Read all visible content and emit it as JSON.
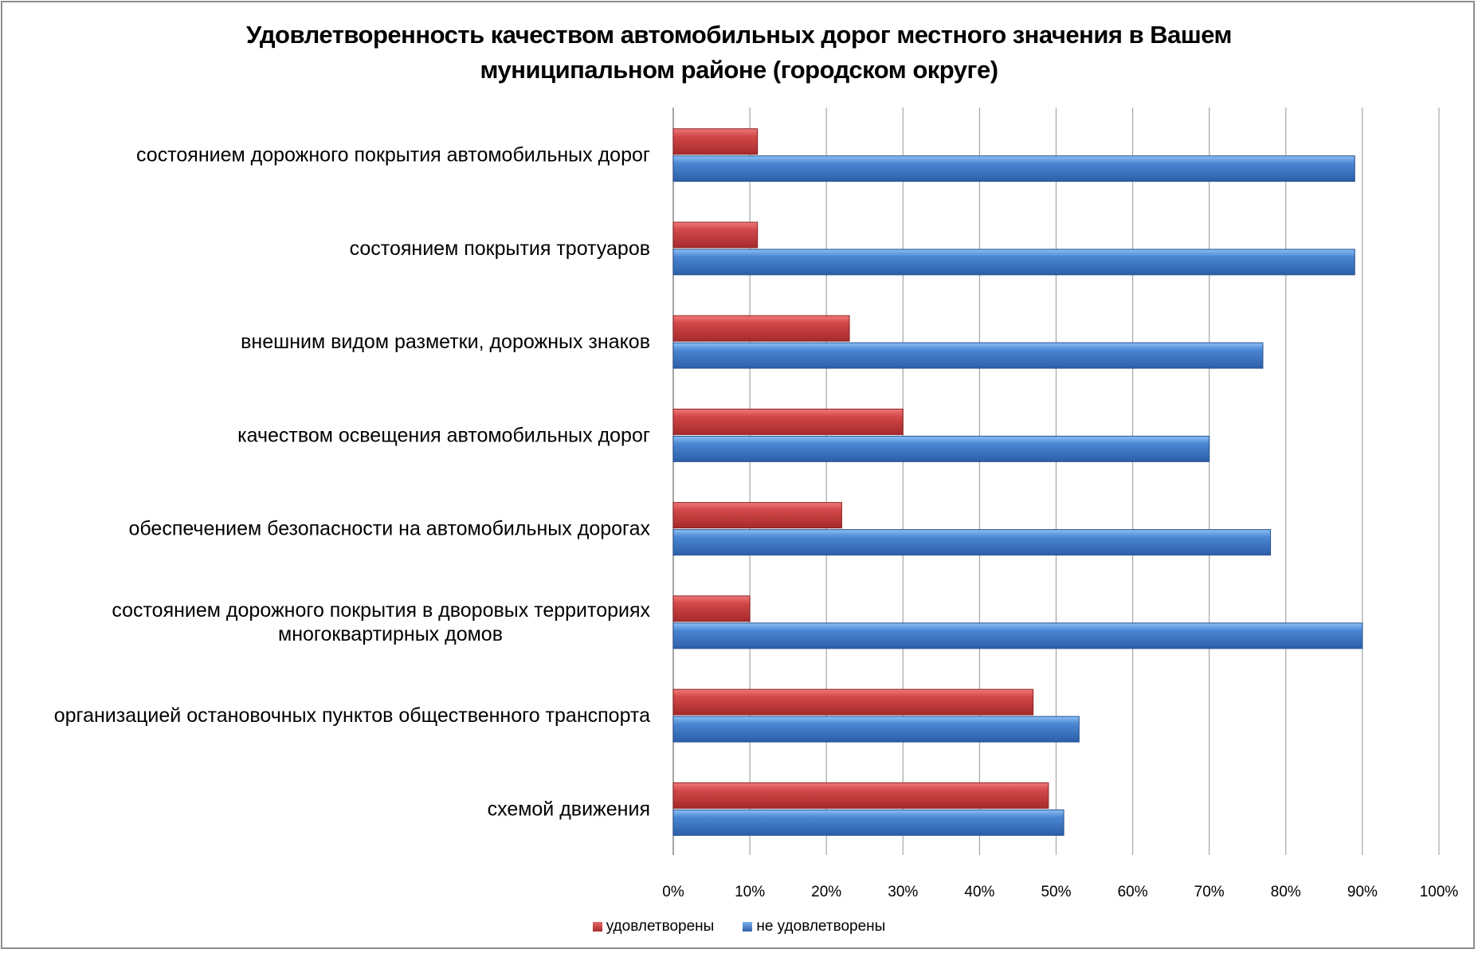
{
  "chart_data": {
    "type": "bar",
    "orientation": "horizontal",
    "title": "Удовлетворенность качеством автомобильных дорог местного значения в Вашем муниципальном районе (городском округе)",
    "title_lines": [
      "Удовлетворенность качеством автомобильных дорог местного значения в Вашем",
      "муниципальном районе (городском округе)"
    ],
    "categories": [
      [
        "состоянием дорожного покрытия автомобильных дорог"
      ],
      [
        "состоянием покрытия тротуаров"
      ],
      [
        "внешним видом разметки, дорожных знаков"
      ],
      [
        "качеством освещения автомобильных дорог"
      ],
      [
        "обеспечением безопасности на автомобильных дорогах"
      ],
      [
        "состоянием дорожного покрытия в дворовых территориях",
        "многоквартирных домов"
      ],
      [
        "организацией остановочных пунктов общественного транспорта"
      ],
      [
        "схемой движения"
      ]
    ],
    "series": [
      {
        "name": "удовлетворены",
        "color": "#c0393b",
        "values": [
          11,
          11,
          23,
          30,
          22,
          10,
          47,
          49
        ]
      },
      {
        "name": "не удовлетворены",
        "color": "#3a72c0",
        "values": [
          89,
          89,
          77,
          70,
          78,
          90,
          53,
          51
        ]
      }
    ],
    "xlim": [
      0,
      100
    ],
    "xticks": [
      "0%",
      "10%",
      "20%",
      "30%",
      "40%",
      "50%",
      "60%",
      "70%",
      "80%",
      "90%",
      "100%"
    ],
    "grid": true,
    "legend_position": "bottom"
  }
}
